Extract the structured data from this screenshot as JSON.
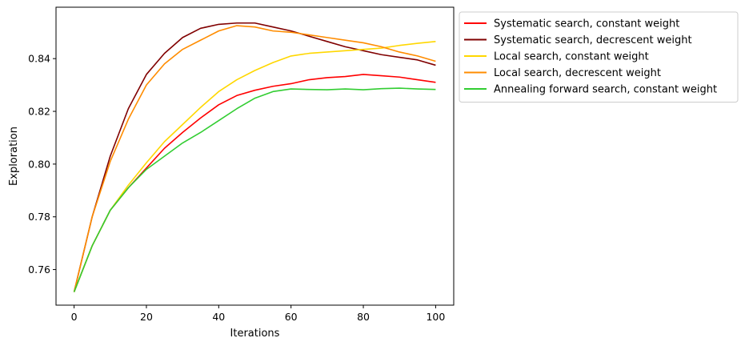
{
  "chart_data": {
    "type": "line",
    "title": "",
    "xlabel": "Iterations",
    "ylabel": "Exploration",
    "xlim": [
      -5,
      105
    ],
    "ylim": [
      0.7465,
      0.8595
    ],
    "xticks": [
      0,
      20,
      40,
      60,
      80,
      100
    ],
    "yticks": [
      0.76,
      0.78,
      0.8,
      0.82,
      0.84
    ],
    "ytick_labels": [
      "0.76",
      "0.78",
      "0.80",
      "0.82",
      "0.84"
    ],
    "xtick_labels": [
      "0",
      "20",
      "40",
      "60",
      "80",
      "100"
    ],
    "grid": false,
    "legend_position": "outside-right-top",
    "x": [
      0,
      5,
      10,
      15,
      20,
      25,
      30,
      35,
      40,
      45,
      50,
      55,
      60,
      65,
      70,
      75,
      80,
      85,
      90,
      95,
      100
    ],
    "series": [
      {
        "name": "Systematic search, constant weight",
        "color": "#ff0000",
        "values": [
          0.7515,
          0.769,
          0.7825,
          0.791,
          0.7985,
          0.806,
          0.812,
          0.8175,
          0.8225,
          0.826,
          0.828,
          0.8295,
          0.8305,
          0.832,
          0.8328,
          0.8332,
          0.834,
          0.8335,
          0.833,
          0.832,
          0.831
        ]
      },
      {
        "name": "Systematic search, decrescent weight",
        "color": "#800000",
        "values": [
          0.7515,
          0.78,
          0.803,
          0.821,
          0.834,
          0.842,
          0.848,
          0.8515,
          0.853,
          0.8535,
          0.8535,
          0.852,
          0.8505,
          0.8485,
          0.8465,
          0.8445,
          0.843,
          0.8415,
          0.8405,
          0.8395,
          0.8375
        ]
      },
      {
        "name": "Local search, constant weight",
        "color": "#ffd700",
        "values": [
          0.7515,
          0.769,
          0.7825,
          0.792,
          0.8005,
          0.8085,
          0.815,
          0.8215,
          0.8275,
          0.832,
          0.8355,
          0.8385,
          0.841,
          0.842,
          0.8425,
          0.843,
          0.8435,
          0.844,
          0.845,
          0.8458,
          0.8465
        ]
      },
      {
        "name": "Local search, decrescent weight",
        "color": "#ff8c00",
        "values": [
          0.7515,
          0.78,
          0.801,
          0.817,
          0.83,
          0.838,
          0.8435,
          0.847,
          0.8505,
          0.8525,
          0.852,
          0.8505,
          0.85,
          0.849,
          0.848,
          0.847,
          0.846,
          0.8445,
          0.8425,
          0.841,
          0.839
        ]
      },
      {
        "name": "Annealing forward search, constant weight",
        "color": "#32cd32",
        "values": [
          0.7515,
          0.769,
          0.7825,
          0.791,
          0.798,
          0.803,
          0.808,
          0.812,
          0.8165,
          0.821,
          0.825,
          0.8275,
          0.8285,
          0.8283,
          0.8282,
          0.8285,
          0.8282,
          0.8286,
          0.8288,
          0.8285,
          0.8283
        ]
      }
    ]
  }
}
